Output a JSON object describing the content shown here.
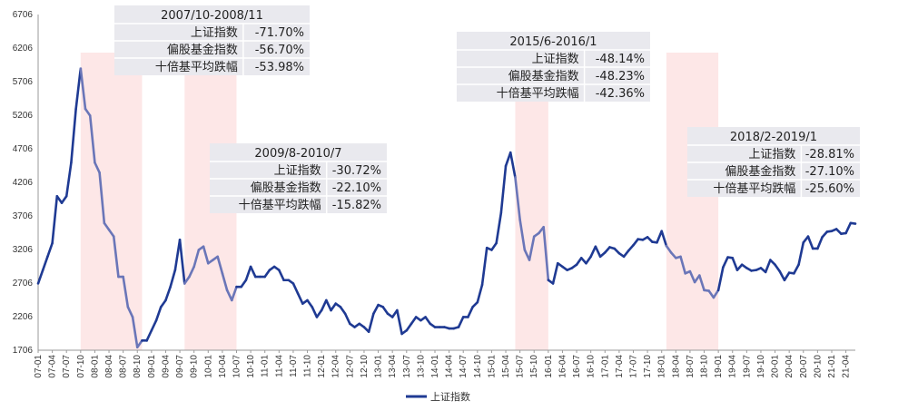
{
  "chart_data": {
    "type": "line",
    "title": "",
    "xlabel": "",
    "ylabel": "",
    "ylim": [
      1706,
      6706
    ],
    "yticks": [
      1706,
      2206,
      2706,
      3206,
      3706,
      4206,
      4706,
      5206,
      5706,
      6206,
      6706
    ],
    "grid": false,
    "legend": "bottom-center",
    "series": [
      {
        "name": "上证指数",
        "color": "#1f3a93",
        "points": [
          [
            "07-01",
            2700
          ],
          [
            "07-02",
            2900
          ],
          [
            "07-03",
            3100
          ],
          [
            "07-04",
            3300
          ],
          [
            "07-05",
            4000
          ],
          [
            "07-06",
            3900
          ],
          [
            "07-07",
            4000
          ],
          [
            "07-08",
            4500
          ],
          [
            "07-09",
            5300
          ],
          [
            "07-10",
            5900
          ],
          [
            "07-11",
            5300
          ],
          [
            "07-12",
            5200
          ],
          [
            "08-01",
            4500
          ],
          [
            "08-02",
            4350
          ],
          [
            "08-03",
            3600
          ],
          [
            "08-04",
            3500
          ],
          [
            "08-05",
            3400
          ],
          [
            "08-06",
            2800
          ],
          [
            "08-07",
            2800
          ],
          [
            "08-08",
            2350
          ],
          [
            "08-09",
            2200
          ],
          [
            "08-10",
            1750
          ],
          [
            "08-11",
            1850
          ],
          [
            "08-12",
            1850
          ],
          [
            "09-01",
            2000
          ],
          [
            "09-02",
            2150
          ],
          [
            "09-03",
            2350
          ],
          [
            "09-04",
            2450
          ],
          [
            "09-05",
            2650
          ],
          [
            "09-06",
            2900
          ],
          [
            "09-07",
            3350
          ],
          [
            "09-08",
            2700
          ],
          [
            "09-09",
            2800
          ],
          [
            "09-10",
            2950
          ],
          [
            "09-11",
            3200
          ],
          [
            "09-12",
            3250
          ],
          [
            "10-01",
            3000
          ],
          [
            "10-02",
            3050
          ],
          [
            "10-03",
            3100
          ],
          [
            "10-04",
            2850
          ],
          [
            "10-05",
            2600
          ],
          [
            "10-06",
            2450
          ],
          [
            "10-07",
            2650
          ],
          [
            "10-08",
            2650
          ],
          [
            "10-09",
            2750
          ],
          [
            "10-10",
            2950
          ],
          [
            "10-11",
            2800
          ],
          [
            "10-12",
            2800
          ],
          [
            "11-01",
            2800
          ],
          [
            "11-02",
            2900
          ],
          [
            "11-03",
            2950
          ],
          [
            "11-04",
            2900
          ],
          [
            "11-05",
            2750
          ],
          [
            "11-06",
            2750
          ],
          [
            "11-07",
            2700
          ],
          [
            "11-08",
            2550
          ],
          [
            "11-09",
            2400
          ],
          [
            "11-10",
            2450
          ],
          [
            "11-11",
            2350
          ],
          [
            "11-12",
            2200
          ],
          [
            "12-01",
            2300
          ],
          [
            "12-02",
            2450
          ],
          [
            "12-03",
            2300
          ],
          [
            "12-04",
            2400
          ],
          [
            "12-05",
            2350
          ],
          [
            "12-06",
            2250
          ],
          [
            "12-07",
            2100
          ],
          [
            "12-08",
            2050
          ],
          [
            "12-09",
            2100
          ],
          [
            "12-10",
            2050
          ],
          [
            "12-11",
            1980
          ],
          [
            "12-12",
            2250
          ],
          [
            "13-01",
            2380
          ],
          [
            "13-02",
            2350
          ],
          [
            "13-03",
            2250
          ],
          [
            "13-04",
            2200
          ],
          [
            "13-05",
            2300
          ],
          [
            "13-06",
            1950
          ],
          [
            "13-07",
            2000
          ],
          [
            "13-08",
            2100
          ],
          [
            "13-09",
            2200
          ],
          [
            "13-10",
            2150
          ],
          [
            "13-11",
            2200
          ],
          [
            "13-12",
            2100
          ],
          [
            "14-01",
            2050
          ],
          [
            "14-02",
            2050
          ],
          [
            "14-03",
            2050
          ],
          [
            "14-04",
            2030
          ],
          [
            "14-05",
            2030
          ],
          [
            "14-06",
            2050
          ],
          [
            "14-07",
            2200
          ],
          [
            "14-08",
            2200
          ],
          [
            "14-09",
            2350
          ],
          [
            "14-10",
            2420
          ],
          [
            "14-11",
            2680
          ],
          [
            "14-12",
            3230
          ],
          [
            "15-01",
            3200
          ],
          [
            "15-02",
            3300
          ],
          [
            "15-03",
            3750
          ],
          [
            "15-04",
            4450
          ],
          [
            "15-05",
            4650
          ],
          [
            "15-06",
            4280
          ],
          [
            "15-07",
            3650
          ],
          [
            "15-08",
            3200
          ],
          [
            "15-09",
            3050
          ],
          [
            "15-10",
            3400
          ],
          [
            "15-11",
            3450
          ],
          [
            "15-12",
            3540
          ],
          [
            "16-01",
            2750
          ],
          [
            "16-02",
            2700
          ],
          [
            "16-03",
            3000
          ],
          [
            "16-04",
            2950
          ],
          [
            "16-05",
            2900
          ],
          [
            "16-06",
            2930
          ],
          [
            "16-07",
            2980
          ],
          [
            "16-08",
            3080
          ],
          [
            "16-09",
            3000
          ],
          [
            "16-10",
            3100
          ],
          [
            "16-11",
            3250
          ],
          [
            "16-12",
            3100
          ],
          [
            "17-01",
            3160
          ],
          [
            "17-02",
            3240
          ],
          [
            "17-03",
            3220
          ],
          [
            "17-04",
            3150
          ],
          [
            "17-05",
            3100
          ],
          [
            "17-06",
            3190
          ],
          [
            "17-07",
            3270
          ],
          [
            "17-08",
            3360
          ],
          [
            "17-09",
            3350
          ],
          [
            "17-10",
            3390
          ],
          [
            "17-11",
            3320
          ],
          [
            "17-12",
            3310
          ],
          [
            "18-01",
            3480
          ],
          [
            "18-02",
            3260
          ],
          [
            "18-03",
            3160
          ],
          [
            "18-04",
            3080
          ],
          [
            "18-05",
            3100
          ],
          [
            "18-06",
            2850
          ],
          [
            "18-07",
            2880
          ],
          [
            "18-08",
            2720
          ],
          [
            "18-09",
            2820
          ],
          [
            "18-10",
            2600
          ],
          [
            "18-11",
            2590
          ],
          [
            "18-12",
            2490
          ],
          [
            "19-01",
            2600
          ],
          [
            "19-02",
            2940
          ],
          [
            "19-03",
            3090
          ],
          [
            "19-04",
            3080
          ],
          [
            "19-05",
            2900
          ],
          [
            "19-06",
            2980
          ],
          [
            "19-07",
            2930
          ],
          [
            "19-08",
            2890
          ],
          [
            "19-09",
            2900
          ],
          [
            "19-10",
            2930
          ],
          [
            "19-11",
            2870
          ],
          [
            "19-12",
            3050
          ],
          [
            "20-01",
            2980
          ],
          [
            "20-02",
            2880
          ],
          [
            "20-03",
            2750
          ],
          [
            "20-04",
            2860
          ],
          [
            "20-05",
            2850
          ],
          [
            "20-06",
            2980
          ],
          [
            "20-07",
            3310
          ],
          [
            "20-08",
            3400
          ],
          [
            "20-09",
            3220
          ],
          [
            "20-10",
            3220
          ],
          [
            "20-11",
            3390
          ],
          [
            "20-12",
            3470
          ],
          [
            "21-01",
            3480
          ],
          [
            "21-02",
            3510
          ],
          [
            "21-03",
            3440
          ],
          [
            "21-04",
            3450
          ],
          [
            "21-05",
            3600
          ],
          [
            "21-06",
            3590
          ]
        ]
      }
    ],
    "xticks": [
      "07-01",
      "07-04",
      "07-07",
      "07-10",
      "08-01",
      "08-04",
      "08-07",
      "08-10",
      "09-01",
      "09-04",
      "09-07",
      "09-10",
      "10-01",
      "10-04",
      "10-07",
      "10-10",
      "11-01",
      "11-04",
      "11-07",
      "11-10",
      "12-01",
      "12-04",
      "12-07",
      "12-10",
      "13-01",
      "13-04",
      "13-07",
      "13-10",
      "14-01",
      "14-04",
      "14-07",
      "14-10",
      "15-01",
      "15-04",
      "15-07",
      "15-10",
      "16-01",
      "16-04",
      "16-07",
      "16-10",
      "17-01",
      "17-04",
      "17-07",
      "17-10",
      "18-01",
      "18-04",
      "18-07",
      "18-10",
      "19-01",
      "19-04",
      "19-07",
      "19-10",
      "20-01",
      "20-04",
      "20-07",
      "20-10",
      "21-01",
      "21-04"
    ],
    "shaded_periods": [
      {
        "start": "07-10",
        "end": "08-11",
        "color": "#fde7e7"
      },
      {
        "start": "09-08",
        "end": "10-07",
        "color": "#fde7e7"
      },
      {
        "start": "15-06",
        "end": "16-01",
        "color": "#fde7e7"
      },
      {
        "start": "18-02",
        "end": "19-01",
        "color": "#fde7e7"
      }
    ],
    "annotations": [
      {
        "title": "2007/10-2008/11",
        "rows": [
          [
            "上证指数",
            "-71.70%"
          ],
          [
            "偏股基金指数",
            "-56.70%"
          ],
          [
            "十倍基平均跌幅",
            "-53.98%"
          ]
        ]
      },
      {
        "title": "2009/8-2010/7",
        "rows": [
          [
            "上证指数",
            "-30.72%"
          ],
          [
            "偏股基金指数",
            "-22.10%"
          ],
          [
            "十倍基平均跌幅",
            "-15.82%"
          ]
        ]
      },
      {
        "title": "2015/6-2016/1",
        "rows": [
          [
            "上证指数",
            "-48.14%"
          ],
          [
            "偏股基金指数",
            "-48.23%"
          ],
          [
            "十倍基平均跌幅",
            "-42.36%"
          ]
        ]
      },
      {
        "title": "2018/2-2019/1",
        "rows": [
          [
            "上证指数",
            "-28.81%"
          ],
          [
            "偏股基金指数",
            "-27.10%"
          ],
          [
            "十倍基平均跌幅",
            "-25.60%"
          ]
        ]
      }
    ],
    "colors": {
      "line": "#1f3a93",
      "line_shaded": "#6a76b8",
      "shade": "#fde7e7",
      "box": "#e9e9ee"
    }
  }
}
